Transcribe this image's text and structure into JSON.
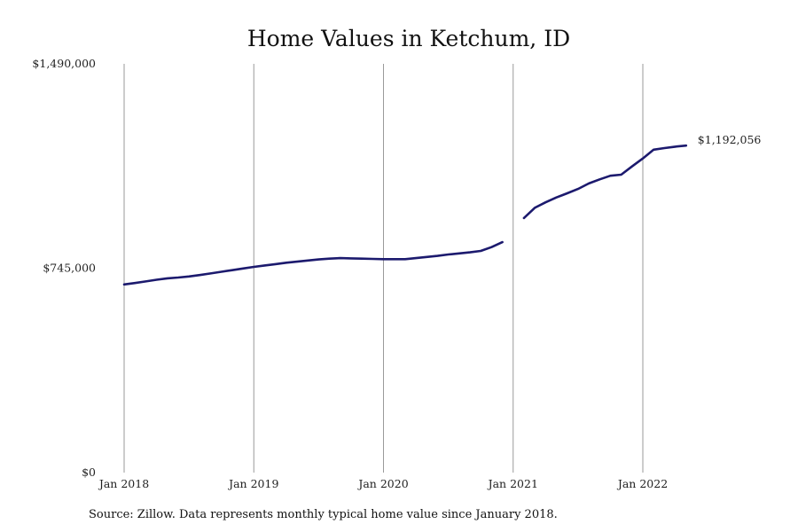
{
  "chart_data": {
    "type": "line",
    "title": "Home Values in Ketchum, ID",
    "xlabel": "",
    "ylabel": "",
    "x_ticks": [
      "Jan 2018",
      "Jan 2019",
      "Jan 2020",
      "Jan 2021",
      "Jan 2022"
    ],
    "y_ticks": [
      "$0",
      "$745,000",
      "$1,490,000"
    ],
    "ylim": [
      0,
      1490000
    ],
    "xlim": [
      "2018-01",
      "2022-05"
    ],
    "grid": "vertical",
    "legend": "none",
    "series": [
      {
        "color": "#1c1a6e",
        "end_label": "$1,192,056",
        "segments": [
          {
            "x": [
              "2018-01",
              "2018-02",
              "2018-03",
              "2018-04",
              "2018-05",
              "2018-06",
              "2018-07",
              "2018-08",
              "2018-09",
              "2018-10",
              "2018-11",
              "2018-12",
              "2019-01",
              "2019-02",
              "2019-03",
              "2019-04",
              "2019-05",
              "2019-06",
              "2019-07",
              "2019-08",
              "2019-09",
              "2019-10",
              "2019-11",
              "2019-12",
              "2020-01",
              "2020-02",
              "2020-03",
              "2020-04",
              "2020-05",
              "2020-06",
              "2020-07",
              "2020-08",
              "2020-09",
              "2020-10",
              "2020-11",
              "2020-12"
            ],
            "values": [
              686000,
              691000,
              697000,
              703000,
              708000,
              711000,
              715000,
              720000,
              726000,
              732000,
              738000,
              744000,
              750000,
              755000,
              760000,
              765000,
              769000,
              773000,
              777000,
              780000,
              782000,
              781000,
              780000,
              779000,
              778000,
              778000,
              778000,
              782000,
              786000,
              790000,
              795000,
              799000,
              803000,
              808000,
              822000,
              840000
            ]
          },
          {
            "x": [
              "2021-02",
              "2021-03",
              "2021-04",
              "2021-05",
              "2021-06",
              "2021-07",
              "2021-08",
              "2021-09",
              "2021-10",
              "2021-11",
              "2021-12",
              "2022-01",
              "2022-02",
              "2022-03",
              "2022-04",
              "2022-05"
            ],
            "values": [
              928000,
              965000,
              985000,
              1003000,
              1018000,
              1034000,
              1054000,
              1069000,
              1082000,
              1086000,
              1116000,
              1145000,
              1177000,
              1183000,
              1188000,
              1192056
            ]
          }
        ]
      }
    ]
  },
  "footer": {
    "source": "Source: Zillow. Data represents monthly typical home value since January 2018."
  }
}
